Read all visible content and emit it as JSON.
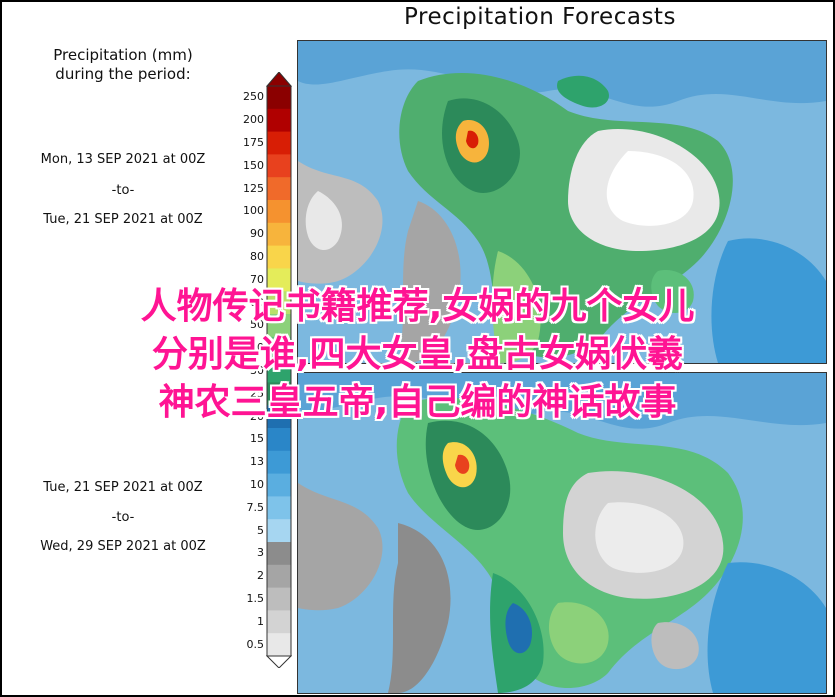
{
  "title": "Precipitation Forecasts",
  "legend": {
    "heading_line1": "Precipitation (mm)",
    "heading_line2": "during the period:",
    "ticks": [
      "250",
      "200",
      "175",
      "150",
      "125",
      "100",
      "90",
      "80",
      "70",
      "60",
      "50",
      "40",
      "30",
      "25",
      "20",
      "15",
      "13",
      "10",
      "7.5",
      "5",
      "3",
      "2",
      "1.5",
      "1",
      "0.5"
    ],
    "colors": [
      "#8b0000",
      "#b00000",
      "#d81e05",
      "#e8411e",
      "#f06a2a",
      "#f5922f",
      "#f7b43c",
      "#f9d54a",
      "#e4ec5a",
      "#b9e06b",
      "#8cd17a",
      "#5cbf7a",
      "#2ea36c",
      "#2c8a5a",
      "#1f6fb0",
      "#2a86c8",
      "#3d9ad6",
      "#5aaee0",
      "#7ec3ea",
      "#a6d6f1",
      "#8c8c8c",
      "#a5a5a5",
      "#bdbdbd",
      "#d3d3d3",
      "#e8e8e8"
    ]
  },
  "periods": [
    {
      "start": "Mon, 13 SEP 2021 at 00Z",
      "to": "-to-",
      "end": "Tue, 21 SEP 2021 at 00Z"
    },
    {
      "start": "Tue, 21 SEP 2021 at 00Z",
      "to": "-to-",
      "end": "Wed, 29 SEP 2021 at 00Z"
    }
  ],
  "overlay_text": {
    "line1": "人物传记书籍推荐,女娲的九个女儿",
    "line2": "分别是谁,四大女皇,盘古女娲伏羲",
    "line3": "神农三皇五帝,自己编的神话故事"
  }
}
